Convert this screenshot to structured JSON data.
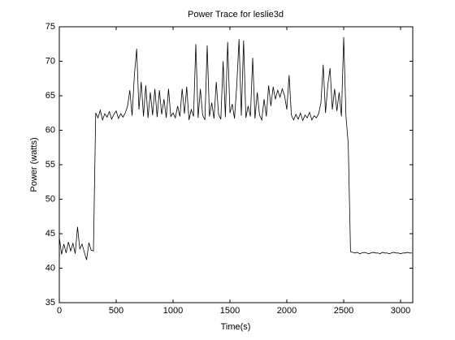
{
  "chart_data": {
    "type": "line",
    "title": "Power Trace for leslie3d",
    "x_label": "Time(s)",
    "y_label": "Power (watts)",
    "xlim": [
      0,
      3107
    ],
    "ylim": [
      35,
      75
    ],
    "xticks": [
      0,
      500,
      1000,
      1500,
      2000,
      2500,
      3000
    ],
    "yticks": [
      35,
      40,
      45,
      50,
      55,
      60,
      65,
      70,
      75
    ],
    "grid": false,
    "series": [
      {
        "color": "#000000",
        "x": [
          0,
          20,
          40,
          60,
          80,
          100,
          120,
          140,
          160,
          180,
          200,
          220,
          240,
          260,
          280,
          300,
          320,
          340,
          360,
          380,
          400,
          420,
          440,
          460,
          480,
          500,
          520,
          540,
          560,
          580,
          600,
          620,
          640,
          660,
          680,
          700,
          720,
          740,
          760,
          780,
          800,
          820,
          840,
          860,
          880,
          900,
          920,
          940,
          960,
          980,
          1000,
          1020,
          1040,
          1060,
          1080,
          1100,
          1120,
          1140,
          1160,
          1180,
          1200,
          1220,
          1240,
          1260,
          1280,
          1300,
          1320,
          1340,
          1360,
          1380,
          1400,
          1420,
          1440,
          1460,
          1480,
          1500,
          1520,
          1540,
          1560,
          1580,
          1600,
          1620,
          1640,
          1660,
          1680,
          1700,
          1720,
          1740,
          1760,
          1780,
          1800,
          1820,
          1840,
          1860,
          1880,
          1900,
          1920,
          1940,
          1960,
          1980,
          2000,
          2020,
          2040,
          2060,
          2080,
          2100,
          2120,
          2140,
          2160,
          2180,
          2200,
          2220,
          2240,
          2260,
          2280,
          2300,
          2320,
          2340,
          2360,
          2380,
          2400,
          2420,
          2440,
          2460,
          2480,
          2500,
          2520,
          2540,
          2560,
          2580,
          2600,
          2620,
          2640,
          2660,
          2680,
          2700,
          2720,
          2740,
          2760,
          2780,
          2800,
          2820,
          2840,
          2860,
          2880,
          2900,
          2920,
          2940,
          2960,
          2980,
          3000,
          3020,
          3040,
          3060,
          3080,
          3100
        ],
        "values": [
          44.5,
          42,
          43.5,
          42.2,
          43.8,
          42.5,
          43.6,
          42.1,
          46,
          42.8,
          43.5,
          42.3,
          41.2,
          43.7,
          42.6,
          42.5,
          62.5,
          61.8,
          62.9,
          61.5,
          62.4,
          61.9,
          62.7,
          61.6,
          62.3,
          62.8,
          61.7,
          62.4,
          61.9,
          62.5,
          63.5,
          65.8,
          62.1,
          68,
          71.8,
          63,
          67,
          62,
          66.5,
          61.8,
          65.5,
          62.2,
          66,
          61.9,
          65.8,
          62.3,
          64.5,
          61.8,
          66,
          62,
          62.5,
          61.8,
          63.5,
          62,
          66,
          62.4,
          66.3,
          61.5,
          63,
          62,
          72.5,
          61.8,
          66,
          62.2,
          61.5,
          72.3,
          62,
          64,
          61.7,
          67,
          62.3,
          61.6,
          70,
          61.9,
          72.8,
          62.5,
          63.8,
          61.7,
          66.5,
          73.2,
          62.1,
          73,
          61.8,
          63.5,
          62,
          70.5,
          61.7,
          65.5,
          62.2,
          61.5,
          64.5,
          62,
          66.5,
          63.5,
          66.3,
          64.5,
          65.8,
          64.8,
          66,
          65,
          63,
          68,
          62.2,
          61.5,
          62.3,
          61.6,
          62.5,
          61.4,
          62.2,
          61.8,
          62.6,
          61.5,
          62.1,
          61.8,
          62.4,
          64,
          69.5,
          62.5,
          66.5,
          69,
          63,
          66,
          62.8,
          65.5,
          62,
          73.5,
          62,
          58,
          42.4,
          42.3,
          42.2,
          42.3,
          42.1,
          42.2,
          42.3,
          42.2,
          42.1,
          42.2,
          42.3,
          42.2,
          42.2,
          42.1,
          42.3,
          42.2,
          42.2,
          42.1,
          42.2,
          42.3,
          42.2,
          42.2,
          42.1,
          42.2,
          42.2,
          42.3,
          42.2,
          42.2
        ]
      }
    ]
  }
}
